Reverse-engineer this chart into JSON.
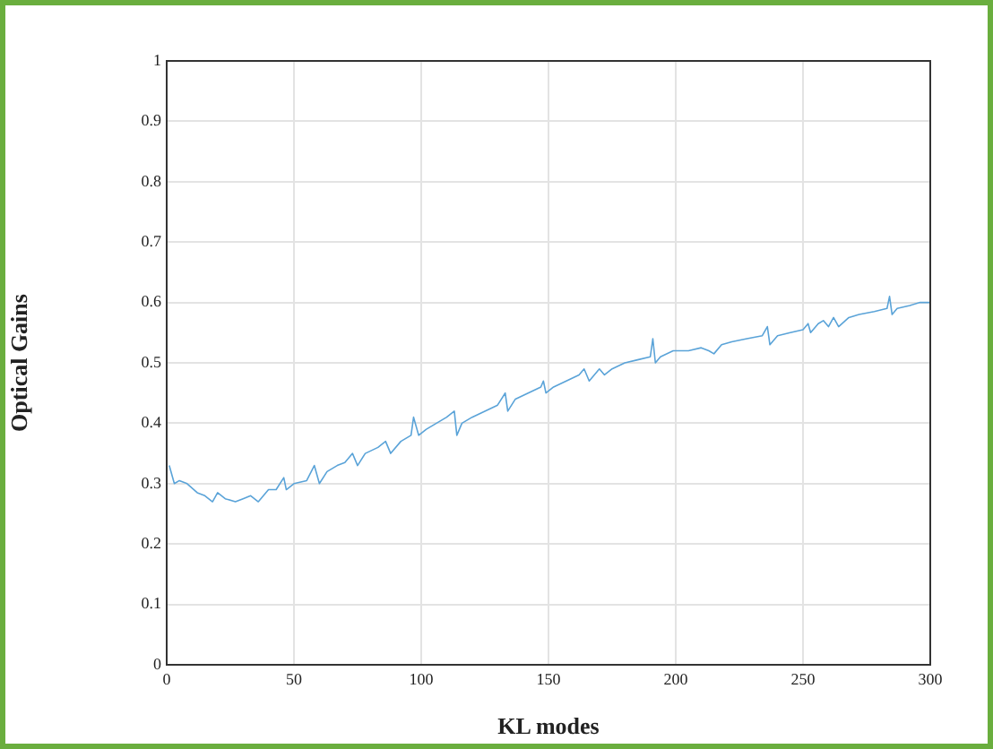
{
  "chart_data": {
    "type": "line",
    "xlabel": "KL modes",
    "ylabel": "Optical Gains",
    "x": [
      1,
      3,
      5,
      8,
      12,
      15,
      18,
      20,
      23,
      27,
      30,
      33,
      36,
      40,
      43,
      46,
      47,
      50,
      55,
      58,
      60,
      63,
      67,
      70,
      73,
      75,
      78,
      83,
      86,
      88,
      92,
      96,
      97,
      99,
      102,
      106,
      110,
      113,
      114,
      116,
      120,
      125,
      130,
      133,
      134,
      137,
      142,
      147,
      148,
      149,
      152,
      157,
      162,
      164,
      166,
      168,
      170,
      172,
      175,
      180,
      185,
      190,
      191,
      192,
      194,
      199,
      205,
      210,
      213,
      215,
      218,
      222,
      228,
      234,
      236,
      237,
      240,
      245,
      250,
      252,
      253,
      256,
      258,
      260,
      262,
      264,
      268,
      272,
      278,
      283,
      284,
      285,
      287,
      292,
      296,
      300
    ],
    "series": [
      {
        "color": "#5aa3d8",
        "values": [
          0.33,
          0.3,
          0.305,
          0.3,
          0.285,
          0.28,
          0.27,
          0.285,
          0.275,
          0.27,
          0.275,
          0.28,
          0.27,
          0.29,
          0.29,
          0.31,
          0.29,
          0.3,
          0.305,
          0.33,
          0.3,
          0.32,
          0.33,
          0.335,
          0.35,
          0.33,
          0.35,
          0.36,
          0.37,
          0.35,
          0.37,
          0.38,
          0.41,
          0.38,
          0.39,
          0.4,
          0.41,
          0.42,
          0.38,
          0.4,
          0.41,
          0.42,
          0.43,
          0.45,
          0.42,
          0.44,
          0.45,
          0.46,
          0.47,
          0.45,
          0.46,
          0.47,
          0.48,
          0.49,
          0.47,
          0.48,
          0.49,
          0.48,
          0.49,
          0.5,
          0.505,
          0.51,
          0.54,
          0.5,
          0.51,
          0.52,
          0.52,
          0.525,
          0.52,
          0.515,
          0.53,
          0.535,
          0.54,
          0.545,
          0.56,
          0.53,
          0.545,
          0.55,
          0.555,
          0.565,
          0.55,
          0.565,
          0.57,
          0.56,
          0.575,
          0.56,
          0.575,
          0.58,
          0.585,
          0.59,
          0.61,
          0.58,
          0.59,
          0.595,
          0.6,
          0.6
        ]
      }
    ],
    "xlim": [
      0,
      300
    ],
    "xticks": [
      0,
      50,
      100,
      150,
      200,
      250,
      300
    ],
    "ylim": [
      0,
      1
    ],
    "yticks": [
      0,
      0.1,
      0.2,
      0.3,
      0.4,
      0.5,
      0.6,
      0.7,
      0.8,
      0.9,
      1
    ],
    "grid": true,
    "marker": "none",
    "line_style": "solid"
  }
}
